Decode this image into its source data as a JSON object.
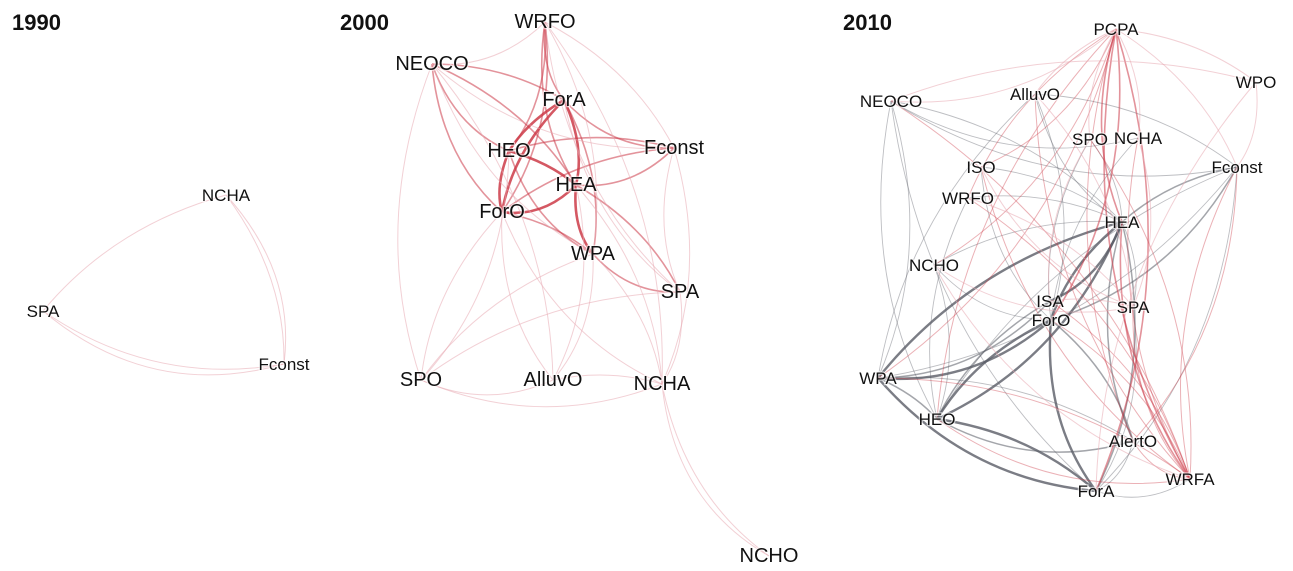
{
  "panels": [
    {
      "title": "1990",
      "nodes": [
        "NCHA",
        "SPA",
        "Fconst"
      ],
      "edges": [
        [
          "NCHA",
          "SPA",
          1,
          "pink"
        ],
        [
          "NCHA",
          "Fconst",
          1,
          "pink"
        ],
        [
          "SPA",
          "Fconst",
          1,
          "pink"
        ],
        [
          "SPA",
          "Fconst",
          1,
          "pink"
        ],
        [
          "NCHA",
          "Fconst",
          1,
          "pink"
        ]
      ]
    },
    {
      "title": "2000",
      "nodes": [
        "WRFO",
        "NEOCO",
        "ForA",
        "HEO",
        "Fconst",
        "HEA",
        "ForO",
        "WPA",
        "SPA",
        "SPO",
        "AlluvO",
        "NCHA",
        "NCHO"
      ],
      "edges": [
        [
          "ForA",
          "HEO",
          3,
          "red"
        ],
        [
          "ForA",
          "HEA",
          3,
          "red"
        ],
        [
          "ForA",
          "ForO",
          3,
          "red"
        ],
        [
          "HEO",
          "HEA",
          3,
          "red"
        ],
        [
          "HEO",
          "ForO",
          3,
          "red"
        ],
        [
          "HEA",
          "ForO",
          3,
          "red"
        ],
        [
          "HEA",
          "WPA",
          3,
          "red"
        ],
        [
          "ForO",
          "WPA",
          2,
          "red"
        ],
        [
          "HEO",
          "WPA",
          2,
          "red"
        ],
        [
          "ForA",
          "WPA",
          2,
          "red"
        ],
        [
          "WRFO",
          "ForA",
          2,
          "red"
        ],
        [
          "WRFO",
          "HEO",
          2,
          "red"
        ],
        [
          "WRFO",
          "HEA",
          2,
          "red"
        ],
        [
          "WRFO",
          "ForO",
          2,
          "red"
        ],
        [
          "NEOCO",
          "HEO",
          2,
          "red"
        ],
        [
          "NEOCO",
          "ForA",
          2,
          "red"
        ],
        [
          "NEOCO",
          "ForO",
          2,
          "red"
        ],
        [
          "NEOCO",
          "HEA",
          2,
          "red"
        ],
        [
          "Fconst",
          "HEO",
          2,
          "red"
        ],
        [
          "Fconst",
          "HEA",
          2,
          "red"
        ],
        [
          "Fconst",
          "ForO",
          2,
          "red"
        ],
        [
          "Fconst",
          "ForA",
          2,
          "red"
        ],
        [
          "WPA",
          "SPA",
          2,
          "red"
        ],
        [
          "HEA",
          "SPA",
          2,
          "red"
        ],
        [
          "NEOCO",
          "WRFO",
          1,
          "pink"
        ],
        [
          "WRFO",
          "Fconst",
          1,
          "pink"
        ],
        [
          "NEOCO",
          "Fconst",
          1,
          "pink"
        ],
        [
          "WPA",
          "NCHA",
          1,
          "pink"
        ],
        [
          "ForO",
          "SPO",
          1,
          "pink"
        ],
        [
          "HEO",
          "SPO",
          1,
          "pink"
        ],
        [
          "ForO",
          "AlluvO",
          1,
          "pink"
        ],
        [
          "HEA",
          "AlluvO",
          1,
          "pink"
        ],
        [
          "ForO",
          "NCHA",
          1,
          "pink"
        ],
        [
          "HEA",
          "NCHA",
          1,
          "pink"
        ],
        [
          "SPO",
          "AlluvO",
          1,
          "pink"
        ],
        [
          "AlluvO",
          "NCHA",
          1,
          "pink"
        ],
        [
          "SPO",
          "NCHA",
          1,
          "pink"
        ],
        [
          "SPA",
          "NCHA",
          1,
          "pink"
        ],
        [
          "NEOCO",
          "SPO",
          1,
          "pink"
        ],
        [
          "NEOCO",
          "AlluvO",
          1,
          "pink"
        ],
        [
          "WRFO",
          "SPA",
          1,
          "pink"
        ],
        [
          "WRFO",
          "NCHA",
          1,
          "pink"
        ],
        [
          "Fconst",
          "SPA",
          1,
          "pink"
        ],
        [
          "Fconst",
          "NCHA",
          1,
          "pink"
        ],
        [
          "WPA",
          "SPO",
          1,
          "pink"
        ],
        [
          "WPA",
          "AlluvO",
          1,
          "pink"
        ],
        [
          "NCHA",
          "NCHO",
          1,
          "pink"
        ],
        [
          "NCHA",
          "NCHO",
          1,
          "pink"
        ],
        [
          "NEOCO",
          "WPA",
          1,
          "pink"
        ],
        [
          "WRFO",
          "WPA",
          1,
          "pink"
        ],
        [
          "ForA",
          "SPA",
          1,
          "pink"
        ],
        [
          "SPO",
          "SPA",
          1,
          "pink"
        ]
      ]
    },
    {
      "title": "2010",
      "nodes": [
        "PCPA",
        "WPO",
        "NEOCO",
        "AlluvO",
        "SPO",
        "NCHA",
        "ISO",
        "Fconst",
        "WRFO",
        "HEA",
        "NCHO",
        "ISA",
        "SPA",
        "ForO",
        "WPA",
        "HEO",
        "AlertO",
        "WRFA",
        "ForA"
      ],
      "edges": [
        [
          "HEA",
          "ForO",
          3,
          "gray"
        ],
        [
          "HEA",
          "HEO",
          3,
          "gray"
        ],
        [
          "HEA",
          "WPA",
          3,
          "gray"
        ],
        [
          "HEA",
          "ISA",
          3,
          "gray"
        ],
        [
          "ForO",
          "HEO",
          3,
          "gray"
        ],
        [
          "ForO",
          "WPA",
          3,
          "gray"
        ],
        [
          "ForO",
          "ForA",
          3,
          "gray"
        ],
        [
          "HEO",
          "ForA",
          3,
          "gray"
        ],
        [
          "WPA",
          "ForA",
          3,
          "gray"
        ],
        [
          "ISA",
          "WPA",
          2,
          "gray"
        ],
        [
          "ISA",
          "HEO",
          2,
          "gray"
        ],
        [
          "HEA",
          "ForA",
          2,
          "gray"
        ],
        [
          "HEA",
          "AlertO",
          2,
          "gray"
        ],
        [
          "ForO",
          "AlertO",
          2,
          "gray"
        ],
        [
          "HEO",
          "AlertO",
          2,
          "gray"
        ],
        [
          "WPA",
          "HEO",
          2,
          "gray"
        ],
        [
          "Fconst",
          "HEA",
          2,
          "gray"
        ],
        [
          "Fconst",
          "ForO",
          2,
          "gray"
        ],
        [
          "NEOCO",
          "HEO",
          1,
          "gray"
        ],
        [
          "NEOCO",
          "WPA",
          1,
          "gray"
        ],
        [
          "NEOCO",
          "ForA",
          1,
          "gray"
        ],
        [
          "NEOCO",
          "HEA",
          1,
          "gray"
        ],
        [
          "AlluvO",
          "HEA",
          1,
          "gray"
        ],
        [
          "AlluvO",
          "ForO",
          1,
          "gray"
        ],
        [
          "AlluvO",
          "WPA",
          1,
          "gray"
        ],
        [
          "ISO",
          "HEA",
          1,
          "gray"
        ],
        [
          "ISO",
          "ForO",
          1,
          "gray"
        ],
        [
          "WRFO",
          "HEA",
          1,
          "gray"
        ],
        [
          "WRFO",
          "HEO",
          1,
          "gray"
        ],
        [
          "NCHO",
          "HEA",
          1,
          "gray"
        ],
        [
          "NCHO",
          "ForO",
          1,
          "gray"
        ],
        [
          "NCHO",
          "HEO",
          1,
          "gray"
        ],
        [
          "SPA",
          "HEA",
          1,
          "gray"
        ],
        [
          "SPA",
          "ForA",
          1,
          "gray"
        ],
        [
          "NCHA",
          "ForO",
          1,
          "gray"
        ],
        [
          "SPO",
          "HEA",
          1,
          "gray"
        ],
        [
          "SPO",
          "ForO",
          1,
          "gray"
        ],
        [
          "Fconst",
          "WPA",
          1,
          "gray"
        ],
        [
          "Fconst",
          "HEO",
          1,
          "gray"
        ],
        [
          "Fconst",
          "ForA",
          1,
          "gray"
        ],
        [
          "NEOCO",
          "Fconst",
          1,
          "gray"
        ],
        [
          "AlluvO",
          "Fconst",
          1,
          "gray"
        ],
        [
          "NEOCO",
          "NCHA",
          1,
          "gray"
        ],
        [
          "WPA",
          "AlertO",
          1,
          "gray"
        ],
        [
          "ForA",
          "AlertO",
          1,
          "gray"
        ],
        [
          "WRFA",
          "ForA",
          1,
          "gray"
        ],
        [
          "PCPA",
          "HEA",
          2,
          "red"
        ],
        [
          "PCPA",
          "ForO",
          2,
          "red"
        ],
        [
          "PCPA",
          "WRFA",
          2,
          "red"
        ],
        [
          "PCPA",
          "ForA",
          2,
          "red"
        ],
        [
          "PCPA",
          "HEO",
          1,
          "red"
        ],
        [
          "PCPA",
          "WPA",
          1,
          "red"
        ],
        [
          "PCPA",
          "AlertO",
          1,
          "red"
        ],
        [
          "PCPA",
          "NCHO",
          1,
          "red"
        ],
        [
          "PCPA",
          "WRFO",
          1,
          "red"
        ],
        [
          "PCPA",
          "ISO",
          1,
          "red"
        ],
        [
          "Fconst",
          "WRFA",
          1,
          "red"
        ],
        [
          "Fconst",
          "AlertO",
          1,
          "red"
        ],
        [
          "HEA",
          "WRFA",
          2,
          "red"
        ],
        [
          "ForO",
          "WRFA",
          1,
          "red"
        ],
        [
          "HEO",
          "WRFA",
          1,
          "red"
        ],
        [
          "WPA",
          "WRFA",
          1,
          "red"
        ],
        [
          "AlertO",
          "WRFA",
          1,
          "red"
        ],
        [
          "ISA",
          "WRFA",
          1,
          "red"
        ],
        [
          "SPA",
          "WRFA",
          1,
          "red"
        ],
        [
          "NEOCO",
          "WRFA",
          1,
          "red"
        ],
        [
          "AlluvO",
          "WRFA",
          1,
          "red"
        ],
        [
          "WRFO",
          "WRFA",
          1,
          "red"
        ],
        [
          "ISO",
          "WRFA",
          1,
          "red"
        ],
        [
          "SPO",
          "WRFA",
          1,
          "red"
        ],
        [
          "NCHA",
          "WRFA",
          1,
          "red"
        ],
        [
          "PCPA",
          "NEOCO",
          1,
          "pink"
        ],
        [
          "PCPA",
          "AlluvO",
          1,
          "pink"
        ],
        [
          "PCPA",
          "Fconst",
          1,
          "pink"
        ],
        [
          "PCPA",
          "SPO",
          1,
          "pink"
        ],
        [
          "PCPA",
          "NCHA",
          1,
          "pink"
        ],
        [
          "WPO",
          "PCPA",
          1,
          "pink"
        ],
        [
          "WPO",
          "Fconst",
          1,
          "pink"
        ],
        [
          "WPO",
          "ForA",
          1,
          "pink"
        ],
        [
          "NEOCO",
          "WPO",
          1,
          "pink"
        ],
        [
          "NCHO",
          "WRFA",
          1,
          "pink"
        ],
        [
          "ISA",
          "SPA",
          1,
          "pink"
        ],
        [
          "ISO",
          "SPA",
          1,
          "pink"
        ],
        [
          "WRFO",
          "SPA",
          1,
          "pink"
        ],
        [
          "NCHO",
          "SPA",
          1,
          "pink"
        ],
        [
          "AlluvO",
          "SPA",
          1,
          "pink"
        ],
        [
          "SPO",
          "ISA",
          1,
          "pink"
        ],
        [
          "NCHA",
          "SPA",
          1,
          "pink"
        ]
      ]
    }
  ],
  "colors": {
    "red": "#cc3b48",
    "pink": "#e8aab3",
    "gray": "#5a5d66",
    "light_pink": "#ecc8cd",
    "text": "#111111",
    "background": "#ffffff"
  }
}
